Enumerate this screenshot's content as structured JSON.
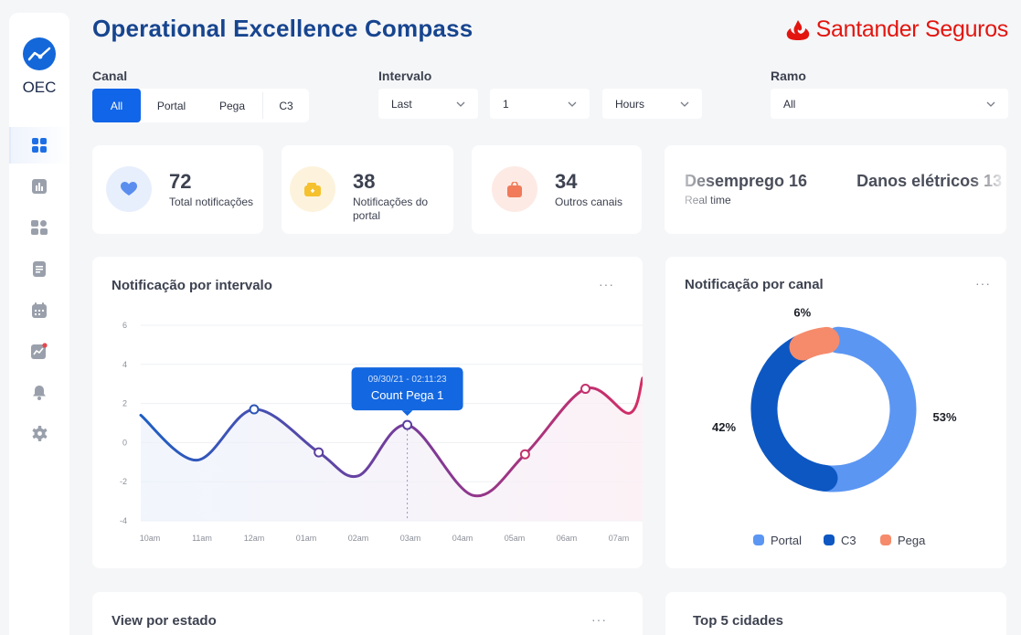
{
  "app": {
    "title": "Operational Excellence Compass",
    "logo_text": "OEC",
    "brand": "Santander",
    "brand_suffix": "Seguros",
    "brand_color": "#e3150f",
    "accent": "#1165e8"
  },
  "sidebar": {
    "items": [
      {
        "name": "dashboard",
        "icon": "grid-icon",
        "active": true
      },
      {
        "name": "reports",
        "icon": "bar-chart-icon",
        "active": false
      },
      {
        "name": "widgets",
        "icon": "widgets-icon",
        "active": false
      },
      {
        "name": "documents",
        "icon": "document-icon",
        "active": false
      },
      {
        "name": "calendar",
        "icon": "calendar-icon",
        "active": false
      },
      {
        "name": "trends",
        "icon": "trend-icon",
        "active": false
      },
      {
        "name": "notifications",
        "icon": "bell-icon",
        "active": false
      },
      {
        "name": "settings",
        "icon": "gear-icon",
        "active": false
      }
    ]
  },
  "filters": {
    "canal_label": "Canal",
    "canal_options": [
      "All",
      "Portal",
      "Pega",
      "C3"
    ],
    "canal_selected": "All",
    "intervalo_label": "Intervalo",
    "intervalo_mode": "Last",
    "intervalo_amount": "1",
    "intervalo_unit": "Hours",
    "ramo_label": "Ramo",
    "ramo_value": "All"
  },
  "stats": [
    {
      "value": "72",
      "label": "Total notificações",
      "icon": "heart-icon",
      "color": "#5b8def",
      "bg": "#e8effc"
    },
    {
      "value": "38",
      "label": "Notificações do portal",
      "icon": "wallet-icon",
      "color": "#f5c12e",
      "bg": "#fdf3dc"
    },
    {
      "value": "34",
      "label": "Outros canais",
      "icon": "bag-icon",
      "color": "#f07a5a",
      "bg": "#fdeae4"
    }
  ],
  "ticker": {
    "items": [
      "Desemprego 16",
      "Danos elétricos 13"
    ],
    "sub": "Real time"
  },
  "line_card": {
    "title": "Notificação por intervalo",
    "menu": "···",
    "tooltip_date": "09/30/21 - 02:11:23",
    "tooltip_value": "Count Pega 1"
  },
  "donut_card": {
    "title": "Notificação por canal",
    "menu": "···",
    "legend": [
      "Portal",
      "C3",
      "Pega"
    ]
  },
  "bottom": {
    "left_title": "View por estado",
    "left_menu": "···",
    "right_title": "Top 5 cidades"
  },
  "chart_data": [
    {
      "type": "line",
      "title": "Notificação por intervalo",
      "x": [
        "10am",
        "11am",
        "12am",
        "01am",
        "02am",
        "03am",
        "04am",
        "05am",
        "06am",
        "07am"
      ],
      "y_ticks": [
        6,
        4,
        2,
        0,
        -2,
        -4
      ],
      "ylim": [
        -4,
        6
      ],
      "grid": true,
      "series": [
        {
          "points": [
            [
              0,
              1.4
            ],
            [
              0.45,
              -0.9
            ],
            [
              1.0,
              1.7
            ],
            [
              1.62,
              -0.5
            ],
            [
              2.0,
              -1.7
            ],
            [
              2.47,
              0.9
            ],
            [
              3.1,
              -2.7
            ],
            [
              3.6,
              -0.6
            ],
            [
              4.18,
              2.75
            ],
            [
              4.6,
              1.5
            ],
            [
              4.82,
              3.3
            ]
          ],
          "markers": [
            [
              1.0,
              1.7
            ],
            [
              1.62,
              -0.5
            ],
            [
              2.47,
              0.9
            ],
            [
              3.6,
              -0.6
            ],
            [
              4.18,
              2.75
            ]
          ],
          "color_start": "#1f5fc4",
          "color_end": "#d42e64"
        }
      ],
      "tooltip_at": 2.47
    },
    {
      "type": "pie",
      "title": "Notificação por canal",
      "labels": [
        "Portal",
        "C3",
        "Pega"
      ],
      "values": [
        53,
        42,
        6
      ],
      "display": [
        "53%",
        "42%",
        "6%"
      ],
      "colors": [
        "#5b96f3",
        "#0d57c2",
        "#f58b6b"
      ]
    }
  ]
}
